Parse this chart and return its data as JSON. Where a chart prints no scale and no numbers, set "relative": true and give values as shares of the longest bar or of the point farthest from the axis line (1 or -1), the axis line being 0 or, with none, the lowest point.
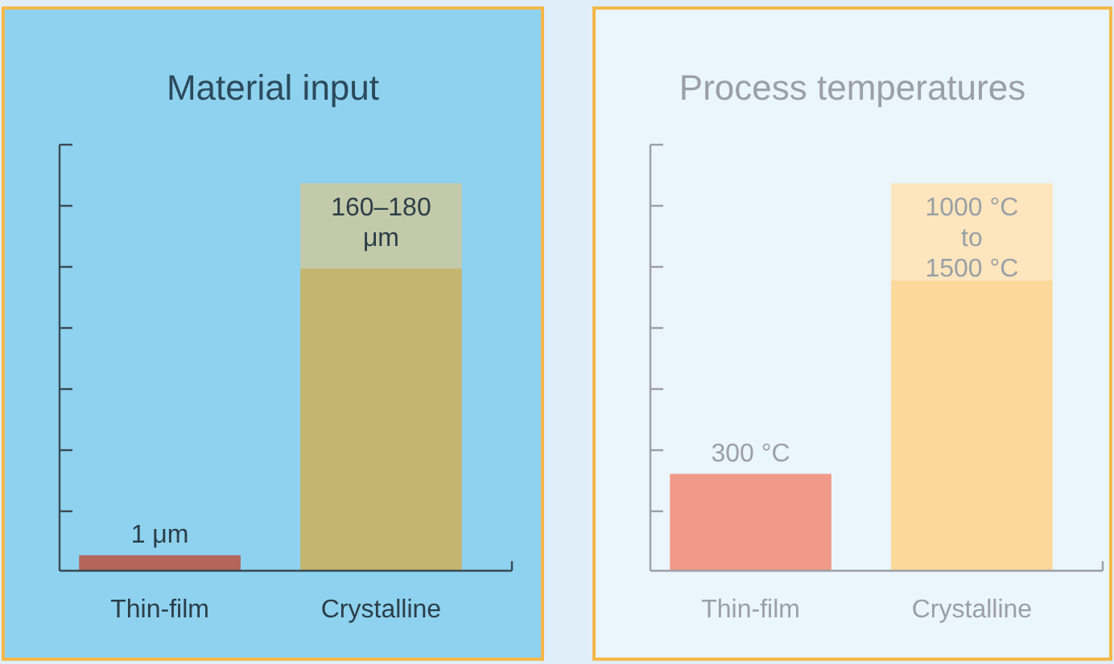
{
  "chart_data": [
    {
      "type": "bar",
      "title": "Material input",
      "categories": [
        "Thin-film",
        "Crystalline"
      ],
      "stacked": true,
      "relative": true,
      "series": [
        {
          "color": "#b5655a",
          "values": [
            0.04,
            null
          ]
        },
        {
          "color": "#c4b56f",
          "values": [
            null,
            0.78
          ]
        },
        {
          "color": "#c3caa9",
          "values": [
            null,
            0.22
          ]
        }
      ],
      "annotations": [
        {
          "text": "1 μm",
          "x": "Thin-film",
          "y": 0.04
        },
        {
          "text": "160–180 μm",
          "x": "Crystalline",
          "y": 1
        }
      ]
    },
    {
      "type": "bar",
      "title": "Process temperatures",
      "categories": [
        "Thin-film",
        "Crystalline"
      ],
      "stacked": true,
      "relative": true,
      "series": [
        {
          "color": "#f19a8a",
          "values": [
            0.25,
            null
          ]
        },
        {
          "color": "#fdd89b",
          "values": [
            null,
            0.75
          ]
        },
        {
          "color": "#fde6bd",
          "values": [
            null,
            0.25
          ]
        }
      ],
      "annotations": [
        {
          "text": "300 °C",
          "x": "Thin-film",
          "y": 0.25
        },
        {
          "text": "1000 °C to 1500 °C",
          "x": "Crystalline",
          "y": 1
        }
      ]
    }
  ]
}
